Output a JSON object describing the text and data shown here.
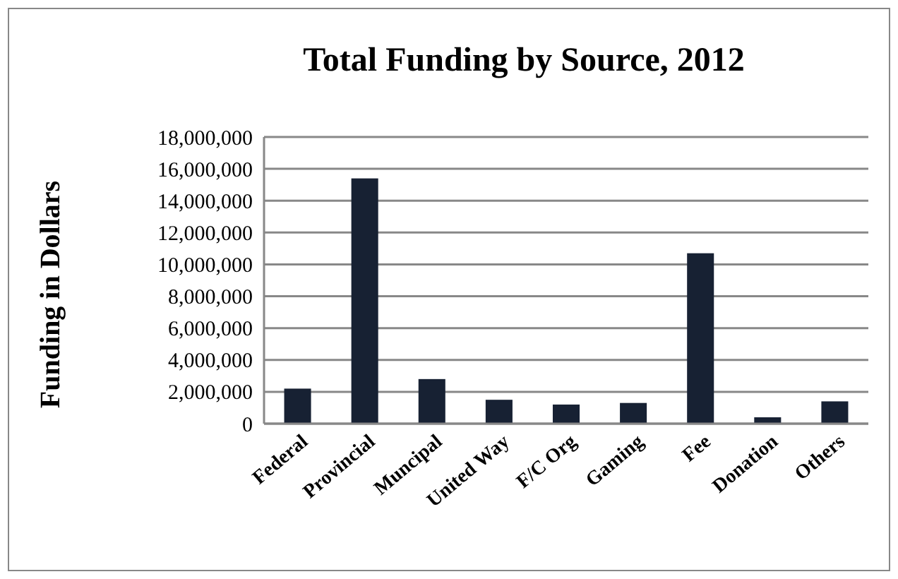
{
  "chart_data": {
    "type": "bar",
    "title": "Total Funding by Source, 2012",
    "ylabel": "Funding in Dollars",
    "categories": [
      "Federal",
      "Provincial",
      "Muncipal",
      "United Way",
      "F/C Org",
      "Gaming",
      "Fee",
      "Donation",
      "Others"
    ],
    "values": [
      2200000,
      15400000,
      2800000,
      1500000,
      1200000,
      1300000,
      10700000,
      400000,
      1400000
    ],
    "color": "#172133",
    "ylim": [
      0,
      18000000
    ],
    "yticks": [
      {
        "value": 0,
        "label": "0"
      },
      {
        "value": 2000000,
        "label": "2,000,000"
      },
      {
        "value": 4000000,
        "label": "4,000,000"
      },
      {
        "value": 6000000,
        "label": "6,000,000"
      },
      {
        "value": 8000000,
        "label": "8,000,000"
      },
      {
        "value": 10000000,
        "label": "10,000,000"
      },
      {
        "value": 12000000,
        "label": "12,000,000"
      },
      {
        "value": 14000000,
        "label": "14,000,000"
      },
      {
        "value": 16000000,
        "label": "16,000,000"
      },
      {
        "value": 18000000,
        "label": "18,000,000"
      }
    ],
    "grid": "y"
  }
}
